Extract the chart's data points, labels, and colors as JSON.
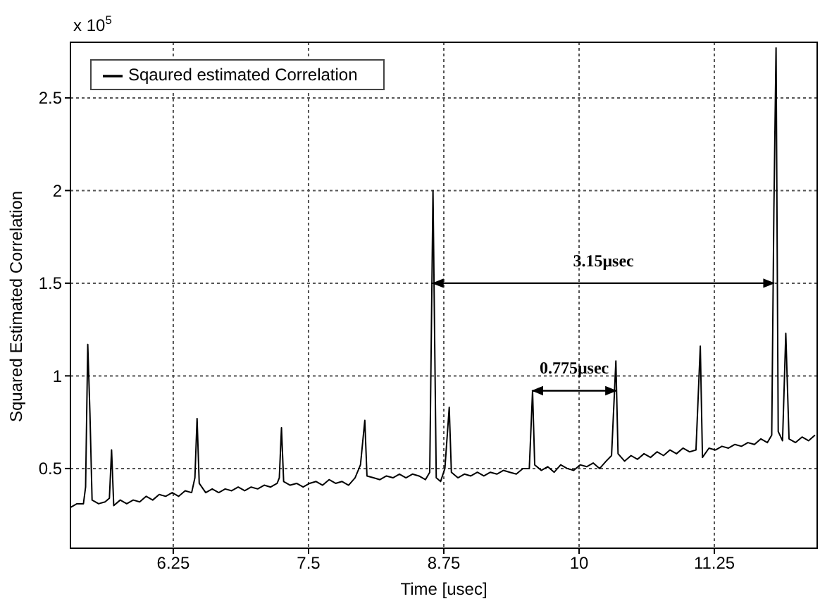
{
  "chart_data": {
    "type": "line",
    "xlabel": "Time [usec]",
    "ylabel": "Squared Estimated Correlation",
    "xlim": [
      5.3,
      12.2
    ],
    "xticks": [
      6.25,
      7.5,
      8.75,
      10,
      11.25
    ],
    "ylim": [
      0.07,
      2.8
    ],
    "yticks": [
      0.5,
      1,
      1.5,
      2,
      2.5
    ],
    "grid": true,
    "legend": "top left",
    "marker": "none",
    "line_style": "solid",
    "annotations": [
      "x 10$^{5}$",
      "3.15μsec",
      "0.775μsec"
    ],
    "series": [
      {
        "name": "Sqaured estimated Correlation",
        "color": "#000000",
        "x": [
          5.3,
          5.36,
          5.42,
          5.44,
          5.46,
          5.48,
          5.5,
          5.56,
          5.62,
          5.66,
          5.68,
          5.7,
          5.76,
          5.82,
          5.88,
          5.94,
          6.0,
          6.06,
          6.12,
          6.18,
          6.24,
          6.3,
          6.36,
          6.42,
          6.45,
          6.47,
          6.49,
          6.55,
          6.61,
          6.67,
          6.73,
          6.79,
          6.85,
          6.91,
          6.97,
          7.03,
          7.09,
          7.15,
          7.21,
          7.23,
          7.25,
          7.27,
          7.33,
          7.39,
          7.45,
          7.51,
          7.57,
          7.63,
          7.69,
          7.75,
          7.81,
          7.87,
          7.93,
          7.98,
          8.02,
          8.04,
          8.1,
          8.16,
          8.22,
          8.28,
          8.34,
          8.4,
          8.46,
          8.52,
          8.58,
          8.62,
          8.65,
          8.68,
          8.72,
          8.76,
          8.8,
          8.82,
          8.88,
          8.94,
          9.0,
          9.06,
          9.12,
          9.18,
          9.24,
          9.3,
          9.36,
          9.42,
          9.48,
          9.54,
          9.57,
          9.59,
          9.65,
          9.71,
          9.77,
          9.83,
          9.89,
          9.95,
          10.01,
          10.07,
          10.13,
          10.19,
          10.25,
          10.3,
          10.34,
          10.36,
          10.42,
          10.48,
          10.54,
          10.6,
          10.66,
          10.72,
          10.78,
          10.84,
          10.9,
          10.96,
          11.02,
          11.08,
          11.12,
          11.14,
          11.2,
          11.26,
          11.32,
          11.38,
          11.44,
          11.5,
          11.56,
          11.62,
          11.68,
          11.74,
          11.78,
          11.8,
          11.82,
          11.84,
          11.88,
          11.91,
          11.94,
          12.0,
          12.06,
          12.12,
          12.18
        ],
        "values": [
          0.29,
          0.31,
          0.31,
          0.4,
          1.17,
          0.8,
          0.33,
          0.31,
          0.32,
          0.34,
          0.6,
          0.3,
          0.33,
          0.31,
          0.33,
          0.32,
          0.35,
          0.33,
          0.36,
          0.35,
          0.37,
          0.35,
          0.38,
          0.37,
          0.45,
          0.77,
          0.42,
          0.37,
          0.39,
          0.37,
          0.39,
          0.38,
          0.4,
          0.38,
          0.4,
          0.39,
          0.41,
          0.4,
          0.42,
          0.45,
          0.72,
          0.43,
          0.41,
          0.42,
          0.4,
          0.42,
          0.43,
          0.41,
          0.44,
          0.42,
          0.43,
          0.41,
          0.45,
          0.52,
          0.76,
          0.46,
          0.45,
          0.44,
          0.46,
          0.45,
          0.47,
          0.45,
          0.47,
          0.46,
          0.44,
          0.48,
          2.0,
          0.45,
          0.43,
          0.5,
          0.83,
          0.48,
          0.45,
          0.47,
          0.46,
          0.48,
          0.46,
          0.48,
          0.47,
          0.49,
          0.48,
          0.47,
          0.5,
          0.5,
          0.92,
          0.52,
          0.49,
          0.51,
          0.48,
          0.52,
          0.5,
          0.49,
          0.52,
          0.51,
          0.53,
          0.5,
          0.54,
          0.57,
          1.08,
          0.58,
          0.54,
          0.57,
          0.55,
          0.58,
          0.56,
          0.59,
          0.57,
          0.6,
          0.58,
          0.61,
          0.59,
          0.6,
          1.16,
          0.56,
          0.61,
          0.6,
          0.62,
          0.61,
          0.63,
          0.62,
          0.64,
          0.63,
          0.66,
          0.64,
          0.68,
          1.9,
          2.77,
          0.7,
          0.65,
          1.23,
          0.66,
          0.64,
          0.67,
          0.65,
          0.68
        ]
      }
    ]
  }
}
